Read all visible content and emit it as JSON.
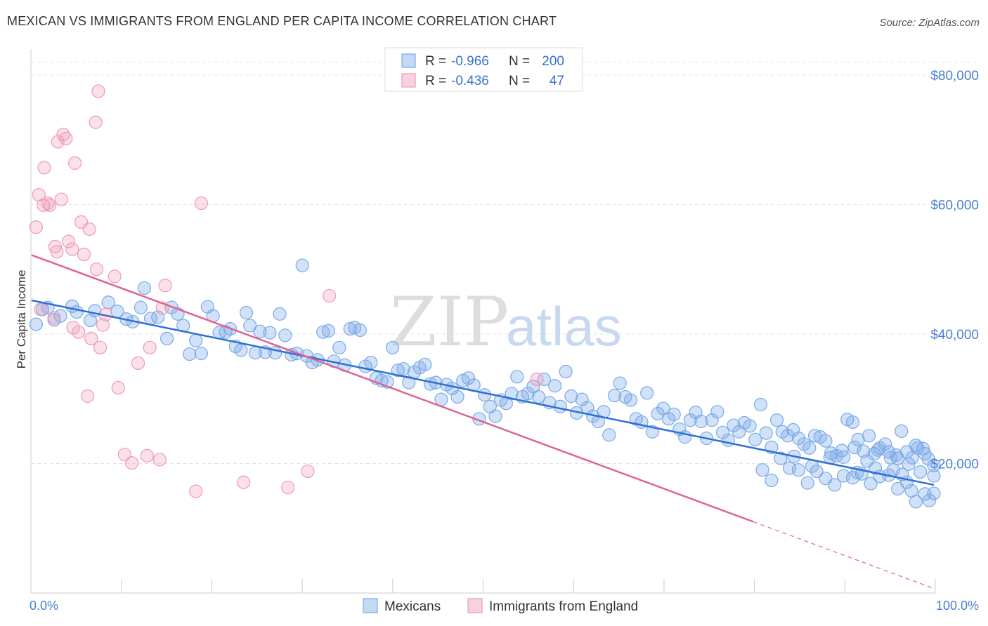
{
  "header": {
    "title": "MEXICAN VS IMMIGRANTS FROM ENGLAND PER CAPITA INCOME CORRELATION CHART",
    "source": "Source: ZipAtlas.com"
  },
  "legend": {
    "rows": [
      {
        "r_label": "R =",
        "r_value": "-0.966",
        "n_label": "N =",
        "n_value": "200",
        "color": "#7aaae8"
      },
      {
        "r_label": "R =",
        "r_value": "-0.436",
        "n_label": "N =",
        "n_value": "47",
        "color": "#f09ab5"
      }
    ]
  },
  "bottom_legend": [
    {
      "label": "Mexicans",
      "color": "#7aaae8"
    },
    {
      "label": "Immigrants from England",
      "color": "#f09ab5"
    }
  ],
  "watermark": {
    "zip": "ZIP",
    "atlas": "atlas"
  },
  "chart_data": {
    "type": "scatter",
    "title": "MEXICAN VS IMMIGRANTS FROM ENGLAND PER CAPITA INCOME CORRELATION CHART",
    "xlabel": "",
    "ylabel": "Per Capita Income",
    "xlim": [
      0,
      100
    ],
    "ylim": [
      0,
      84000
    ],
    "y_ticks": [
      {
        "value": 20000,
        "label": "$20,000"
      },
      {
        "value": 40000,
        "label": "$40,000"
      },
      {
        "value": 60000,
        "label": "$60,000"
      },
      {
        "value": 80000,
        "label": "$80,000"
      }
    ],
    "x_tick_labels": [
      {
        "value": 0,
        "label": "0.0%"
      },
      {
        "value": 100,
        "label": "100.0%"
      }
    ],
    "grid": "horizontal dashed",
    "legend_placement": "top-center",
    "series": [
      {
        "name": "Mexicans",
        "color": "#7aaae8",
        "line_color": "#2f6fd6",
        "trend": {
          "x": [
            0,
            100
          ],
          "y": [
            45200,
            16700
          ],
          "dashed_x": null
        },
        "points": [
          [
            0.5,
            41500
          ],
          [
            1.2,
            43800
          ],
          [
            2.5,
            42200
          ],
          [
            1.8,
            44100
          ],
          [
            3.2,
            42800
          ],
          [
            4.5,
            44300
          ],
          [
            5.0,
            43400
          ],
          [
            6.5,
            42100
          ],
          [
            7.0,
            43600
          ],
          [
            8.5,
            44900
          ],
          [
            9.5,
            43500
          ],
          [
            10.5,
            42300
          ],
          [
            11.2,
            41900
          ],
          [
            12.1,
            44100
          ],
          [
            12.5,
            47100
          ],
          [
            13.2,
            42400
          ],
          [
            14.0,
            42600
          ],
          [
            15.0,
            39300
          ],
          [
            15.5,
            44100
          ],
          [
            16.2,
            43100
          ],
          [
            16.8,
            41300
          ],
          [
            17.5,
            36900
          ],
          [
            18.2,
            39000
          ],
          [
            18.8,
            37000
          ],
          [
            19.5,
            44200
          ],
          [
            20.1,
            42800
          ],
          [
            20.8,
            40200
          ],
          [
            21.5,
            40300
          ],
          [
            22.0,
            40800
          ],
          [
            22.6,
            38100
          ],
          [
            23.2,
            37500
          ],
          [
            23.8,
            43300
          ],
          [
            24.2,
            41300
          ],
          [
            24.8,
            37100
          ],
          [
            25.3,
            40400
          ],
          [
            25.9,
            37200
          ],
          [
            26.4,
            40200
          ],
          [
            27.0,
            37100
          ],
          [
            27.5,
            43100
          ],
          [
            28.1,
            39800
          ],
          [
            28.8,
            36800
          ],
          [
            29.4,
            37000
          ],
          [
            30.0,
            50600
          ],
          [
            30.5,
            36600
          ],
          [
            31.1,
            35600
          ],
          [
            31.7,
            36000
          ],
          [
            32.3,
            40300
          ],
          [
            32.9,
            40500
          ],
          [
            33.5,
            35800
          ],
          [
            34.1,
            37900
          ],
          [
            34.7,
            35200
          ],
          [
            35.3,
            40800
          ],
          [
            35.8,
            41000
          ],
          [
            36.4,
            40600
          ],
          [
            37.0,
            35000
          ],
          [
            37.6,
            35600
          ],
          [
            38.2,
            33200
          ],
          [
            38.8,
            32800
          ],
          [
            39.4,
            32600
          ],
          [
            40.0,
            37900
          ],
          [
            40.6,
            34400
          ],
          [
            41.2,
            34600
          ],
          [
            41.8,
            32500
          ],
          [
            42.4,
            34100
          ],
          [
            43.0,
            34800
          ],
          [
            43.6,
            35300
          ],
          [
            44.2,
            32300
          ],
          [
            44.8,
            32500
          ],
          [
            45.4,
            29900
          ],
          [
            46.0,
            32200
          ],
          [
            46.6,
            31600
          ],
          [
            47.2,
            30300
          ],
          [
            47.8,
            32800
          ],
          [
            48.4,
            33200
          ],
          [
            49.0,
            32100
          ],
          [
            49.6,
            26900
          ],
          [
            50.2,
            30600
          ],
          [
            50.8,
            28800
          ],
          [
            51.4,
            27300
          ],
          [
            52.0,
            29800
          ],
          [
            52.6,
            29300
          ],
          [
            53.2,
            30800
          ],
          [
            53.8,
            33400
          ],
          [
            54.4,
            30300
          ],
          [
            55.0,
            30800
          ],
          [
            55.6,
            31900
          ],
          [
            56.2,
            30300
          ],
          [
            56.8,
            33000
          ],
          [
            57.4,
            29400
          ],
          [
            58.0,
            32000
          ],
          [
            58.6,
            28800
          ],
          [
            59.2,
            34200
          ],
          [
            59.8,
            30400
          ],
          [
            60.4,
            27800
          ],
          [
            61.0,
            29900
          ],
          [
            61.6,
            28600
          ],
          [
            62.2,
            27300
          ],
          [
            62.8,
            26500
          ],
          [
            63.4,
            28000
          ],
          [
            64.0,
            24400
          ],
          [
            64.6,
            30500
          ],
          [
            65.2,
            32400
          ],
          [
            65.8,
            30300
          ],
          [
            66.4,
            29800
          ],
          [
            67.0,
            26900
          ],
          [
            67.6,
            26400
          ],
          [
            68.2,
            30900
          ],
          [
            68.8,
            24900
          ],
          [
            69.4,
            27700
          ],
          [
            70.0,
            28500
          ],
          [
            70.6,
            26900
          ],
          [
            71.2,
            27600
          ],
          [
            71.8,
            25300
          ],
          [
            72.4,
            24100
          ],
          [
            73.0,
            26700
          ],
          [
            73.6,
            27900
          ],
          [
            74.2,
            26500
          ],
          [
            74.8,
            23900
          ],
          [
            75.4,
            26700
          ],
          [
            76.0,
            28000
          ],
          [
            76.6,
            24800
          ],
          [
            77.2,
            23600
          ],
          [
            77.8,
            25900
          ],
          [
            78.4,
            24900
          ],
          [
            79.0,
            26300
          ],
          [
            79.6,
            25800
          ],
          [
            80.2,
            23700
          ],
          [
            80.8,
            29100
          ],
          [
            81.4,
            24700
          ],
          [
            82.0,
            22500
          ],
          [
            82.6,
            26700
          ],
          [
            83.2,
            24900
          ],
          [
            83.8,
            24300
          ],
          [
            84.4,
            25200
          ],
          [
            85.0,
            23900
          ],
          [
            85.6,
            23000
          ],
          [
            86.2,
            22400
          ],
          [
            86.8,
            24300
          ],
          [
            87.4,
            24100
          ],
          [
            88.0,
            23500
          ],
          [
            88.6,
            21600
          ],
          [
            89.2,
            21200
          ],
          [
            89.8,
            22000
          ],
          [
            90.4,
            26800
          ],
          [
            91.0,
            26400
          ],
          [
            91.6,
            23700
          ],
          [
            92.2,
            21900
          ],
          [
            92.8,
            24300
          ],
          [
            93.4,
            21500
          ],
          [
            94.0,
            22400
          ],
          [
            94.6,
            23000
          ],
          [
            95.2,
            20900
          ],
          [
            95.8,
            21300
          ],
          [
            96.4,
            25000
          ],
          [
            97.0,
            21800
          ],
          [
            97.6,
            20900
          ],
          [
            98.2,
            22400
          ],
          [
            98.8,
            22300
          ],
          [
            99.4,
            20700
          ],
          [
            100.0,
            18100
          ],
          [
            90.0,
            21000
          ],
          [
            91.2,
            22500
          ],
          [
            92.6,
            20400
          ],
          [
            93.8,
            22100
          ],
          [
            95.0,
            21800
          ],
          [
            96.0,
            20800
          ],
          [
            97.2,
            19900
          ],
          [
            98.0,
            22800
          ],
          [
            99.0,
            21500
          ],
          [
            100.0,
            19700
          ],
          [
            81.0,
            19000
          ],
          [
            82.0,
            17400
          ],
          [
            83.0,
            20800
          ],
          [
            84.0,
            19300
          ],
          [
            85.0,
            19000
          ],
          [
            86.0,
            17000
          ],
          [
            87.0,
            18800
          ],
          [
            88.0,
            17700
          ],
          [
            89.0,
            16700
          ],
          [
            90.0,
            18100
          ],
          [
            91.0,
            17800
          ],
          [
            92.0,
            18400
          ],
          [
            93.0,
            16900
          ],
          [
            94.0,
            18000
          ],
          [
            95.0,
            18200
          ],
          [
            96.0,
            16100
          ],
          [
            97.0,
            17100
          ],
          [
            98.0,
            14100
          ],
          [
            99.0,
            15300
          ],
          [
            100.0,
            15400
          ],
          [
            84.5,
            21100
          ],
          [
            86.5,
            19600
          ],
          [
            88.5,
            20900
          ],
          [
            91.5,
            18600
          ],
          [
            93.5,
            19300
          ],
          [
            95.5,
            19000
          ],
          [
            96.5,
            18300
          ],
          [
            97.5,
            15800
          ],
          [
            98.5,
            18700
          ],
          [
            99.5,
            14300
          ]
        ]
      },
      {
        "name": "Immigrants from England",
        "color": "#f09ab5",
        "line_color": "#e0628f",
        "trend": {
          "x": [
            0,
            100
          ],
          "y": [
            52200,
            700
          ],
          "solid_until_x": 80
        },
        "points": [
          [
            0.5,
            56500
          ],
          [
            0.8,
            61500
          ],
          [
            1.0,
            43800
          ],
          [
            1.3,
            59900
          ],
          [
            1.4,
            65700
          ],
          [
            1.8,
            60200
          ],
          [
            2.0,
            59900
          ],
          [
            2.5,
            42500
          ],
          [
            2.6,
            53500
          ],
          [
            2.8,
            52700
          ],
          [
            2.9,
            69700
          ],
          [
            3.3,
            60800
          ],
          [
            3.5,
            70800
          ],
          [
            3.8,
            70200
          ],
          [
            4.1,
            54300
          ],
          [
            4.5,
            53100
          ],
          [
            4.6,
            41000
          ],
          [
            4.8,
            66400
          ],
          [
            5.2,
            40300
          ],
          [
            5.5,
            57300
          ],
          [
            5.8,
            52300
          ],
          [
            6.2,
            30400
          ],
          [
            6.4,
            56200
          ],
          [
            6.6,
            39300
          ],
          [
            7.1,
            72700
          ],
          [
            7.2,
            50000
          ],
          [
            7.4,
            77500
          ],
          [
            7.6,
            37900
          ],
          [
            7.9,
            41400
          ],
          [
            8.2,
            43000
          ],
          [
            9.2,
            48900
          ],
          [
            9.6,
            31700
          ],
          [
            10.3,
            21400
          ],
          [
            11.1,
            20100
          ],
          [
            11.8,
            35500
          ],
          [
            12.8,
            21200
          ],
          [
            13.1,
            37900
          ],
          [
            14.2,
            20600
          ],
          [
            14.5,
            44000
          ],
          [
            14.8,
            47500
          ],
          [
            18.2,
            15700
          ],
          [
            18.8,
            60200
          ],
          [
            23.5,
            17100
          ],
          [
            28.4,
            16300
          ],
          [
            30.6,
            18800
          ],
          [
            33.0,
            45900
          ],
          [
            56.0,
            33000
          ]
        ]
      }
    ]
  }
}
